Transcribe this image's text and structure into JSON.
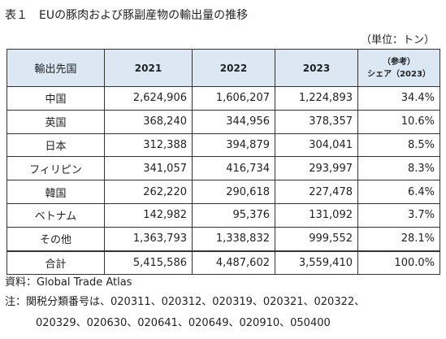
{
  "title": "表１　EUの豚肉および豚副産物の輸出量の推移",
  "unit": "（単位：トン）",
  "table": {
    "header": {
      "country": "輸出先国",
      "y2021": "2021",
      "y2022": "2022",
      "y2023": "2023",
      "ref": "（参考）",
      "share": "シェア（2023）"
    },
    "rows": [
      {
        "country": "中国",
        "y2021": "2,624,906",
        "y2022": "1,606,207",
        "y2023": "1,224,893",
        "share": "34.4%"
      },
      {
        "country": "英国",
        "y2021": "368,240",
        "y2022": "344,956",
        "y2023": "378,357",
        "share": "10.6%"
      },
      {
        "country": "日本",
        "y2021": "312,388",
        "y2022": "394,879",
        "y2023": "304,041",
        "share": "8.5%"
      },
      {
        "country": "フィリピン",
        "y2021": "341,057",
        "y2022": "416,734",
        "y2023": "293,997",
        "share": "8.3%"
      },
      {
        "country": "韓国",
        "y2021": "262,220",
        "y2022": "290,618",
        "y2023": "227,478",
        "share": "6.4%"
      },
      {
        "country": "ベトナム",
        "y2021": "142,982",
        "y2022": "95,376",
        "y2023": "131,092",
        "share": "3.7%"
      },
      {
        "country": "その他",
        "y2021": "1,363,793",
        "y2022": "1,338,832",
        "y2023": "999,552",
        "share": "28.1%"
      }
    ],
    "total": {
      "country": "合計",
      "y2021": "5,415,586",
      "y2022": "4,487,602",
      "y2023": "3,559,410",
      "share": "100.0%"
    }
  },
  "source": "資料：Global Trade Atlas",
  "note_line1": "注：関税分類番号は、020311、020312、020319、020321、020322、",
  "note_line2": "020329、020630、020641、020649、020910、050400",
  "colors": {
    "header_bg": "#dbe8f4",
    "border": "#333333"
  }
}
